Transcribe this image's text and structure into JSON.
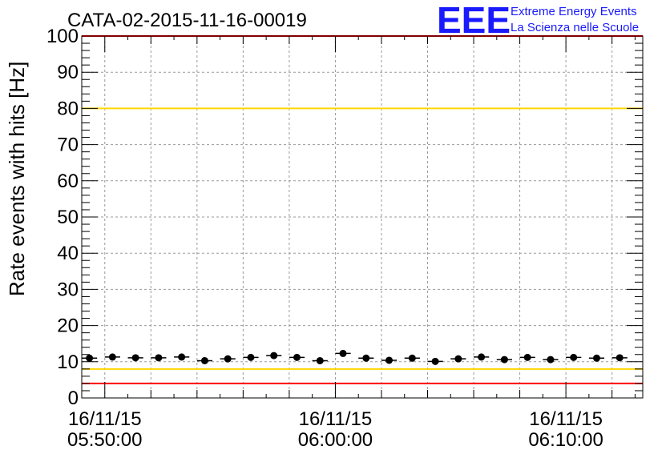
{
  "chart_data": {
    "type": "scatter",
    "title": "CATA-02-2015-11-16-00019",
    "xlabel": "",
    "ylabel": "Rate events with hits [Hz]",
    "ylim": [
      0,
      100
    ],
    "yticks": [
      "0",
      "10",
      "20",
      "30",
      "40",
      "50",
      "60",
      "70",
      "80",
      "90",
      "100"
    ],
    "xlim": [
      "2015-11-16 05:49:00",
      "2015-11-16 06:13:20"
    ],
    "xtick_labels": [
      {
        "date": "16/11/15",
        "time": "05:50:00"
      },
      {
        "date": "16/11/15",
        "time": "06:00:00"
      },
      {
        "date": "16/11/15",
        "time": "06:10:00"
      }
    ],
    "grid": true,
    "series": [
      {
        "x": [
          "05:49:20",
          "05:50:20",
          "05:51:20",
          "05:52:20",
          "05:53:20",
          "05:54:20",
          "05:55:20",
          "05:56:20",
          "05:57:20",
          "05:58:20",
          "05:59:20",
          "06:00:20",
          "06:01:20",
          "06:02:20",
          "06:03:20",
          "06:04:20",
          "06:05:20",
          "06:06:20",
          "06:07:20",
          "06:08:20",
          "06:09:20",
          "06:10:20",
          "06:11:20",
          "06:12:20"
        ],
        "values": [
          11,
          11.3,
          11.1,
          11.1,
          11.3,
          10.3,
          10.8,
          11.2,
          11.7,
          11.2,
          10.3,
          12.3,
          11,
          10.4,
          11,
          10.1,
          10.8,
          11.3,
          10.6,
          11.2,
          10.6,
          11.2,
          11,
          11.1
        ],
        "x_half_width_seconds": 20
      }
    ],
    "reference_lines": [
      {
        "value": 100,
        "color": "#ff0000"
      },
      {
        "value": 80,
        "color": "#ffd700"
      },
      {
        "value": 8,
        "color": "#ffd700"
      },
      {
        "value": 4,
        "color": "#ff0000"
      }
    ]
  },
  "logo": {
    "mark": "EEE",
    "line1": "Extreme Energy Events",
    "line2": "La Scienza nelle Scuole",
    "color": "#1a1aff"
  }
}
